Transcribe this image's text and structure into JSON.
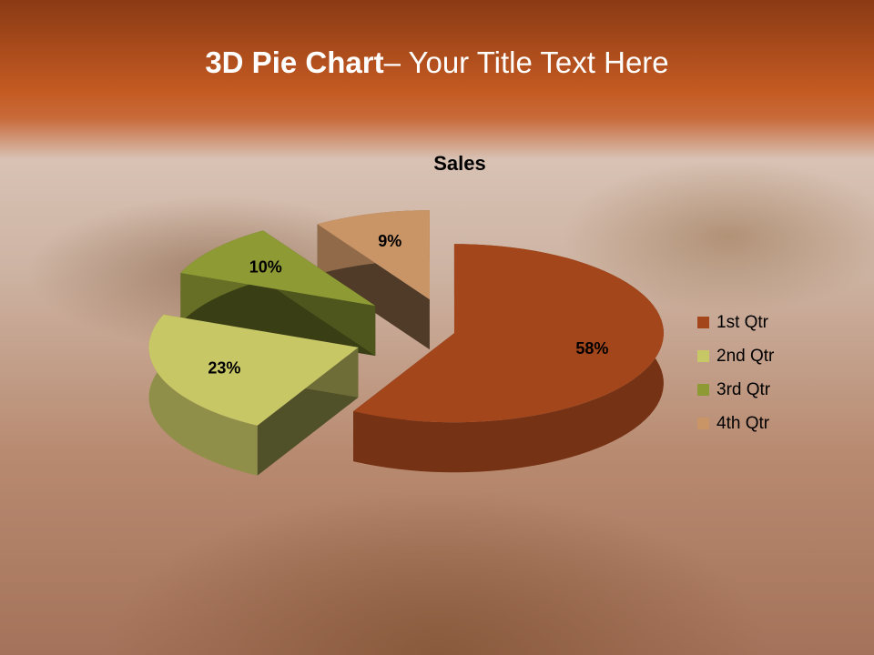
{
  "slide": {
    "title_bold": "3D Pie Chart",
    "title_rest": "– Your Title Text Here"
  },
  "chart_data": {
    "type": "pie",
    "variant": "3d-exploded",
    "title": "Sales",
    "categories": [
      "1st Qtr",
      "2nd Qtr",
      "3rd Qtr",
      "4th Qtr"
    ],
    "values": [
      58,
      23,
      10,
      9
    ],
    "data_labels": [
      "58%",
      "23%",
      "10%",
      "9%"
    ],
    "colors": [
      "#a3461c",
      "#c8c766",
      "#8e9a34",
      "#c99466"
    ],
    "legend_position": "right"
  }
}
